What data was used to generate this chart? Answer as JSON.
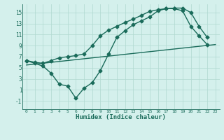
{
  "line1_x": [
    0,
    1,
    2,
    3,
    4,
    5,
    6,
    7,
    8,
    9,
    10,
    11,
    12,
    13,
    14,
    15,
    16,
    17,
    18,
    19,
    20,
    21,
    22,
    23
  ],
  "line1_y": [
    6.3,
    6.0,
    5.8,
    6.3,
    6.8,
    7.0,
    7.2,
    7.5,
    9.0,
    10.8,
    11.8,
    12.5,
    13.2,
    13.8,
    14.5,
    15.2,
    15.5,
    15.7,
    15.7,
    15.3,
    12.5,
    10.8,
    9.2,
    null
  ],
  "line2_x": [
    0,
    1,
    2,
    3,
    4,
    5,
    6,
    7,
    8,
    9,
    10,
    11,
    12,
    13,
    14,
    15,
    16,
    17,
    18,
    19,
    20,
    21,
    22,
    23
  ],
  "line2_y": [
    6.3,
    5.8,
    5.3,
    4.0,
    2.0,
    1.7,
    -0.5,
    1.3,
    2.3,
    4.5,
    7.5,
    10.5,
    11.7,
    12.8,
    13.5,
    14.2,
    15.3,
    15.7,
    15.8,
    15.8,
    15.0,
    12.5,
    10.5,
    null
  ],
  "line3_x": [
    0,
    23
  ],
  "line3_y": [
    5.5,
    9.2
  ],
  "line_color": "#1a6b5a",
  "bg_color": "#d4f0ec",
  "grid_color": "#b0d8d0",
  "xlabel": "Humidex (Indice chaleur)",
  "xlim": [
    -0.5,
    23.5
  ],
  "ylim": [
    -2.5,
    16.5
  ],
  "yticks": [
    -1,
    1,
    3,
    5,
    7,
    9,
    11,
    13,
    15
  ],
  "xticks": [
    0,
    1,
    2,
    3,
    4,
    5,
    6,
    7,
    8,
    9,
    10,
    11,
    12,
    13,
    14,
    15,
    16,
    17,
    18,
    19,
    20,
    21,
    22,
    23
  ],
  "marker": "D",
  "markersize": 2.5,
  "linewidth": 1.0
}
